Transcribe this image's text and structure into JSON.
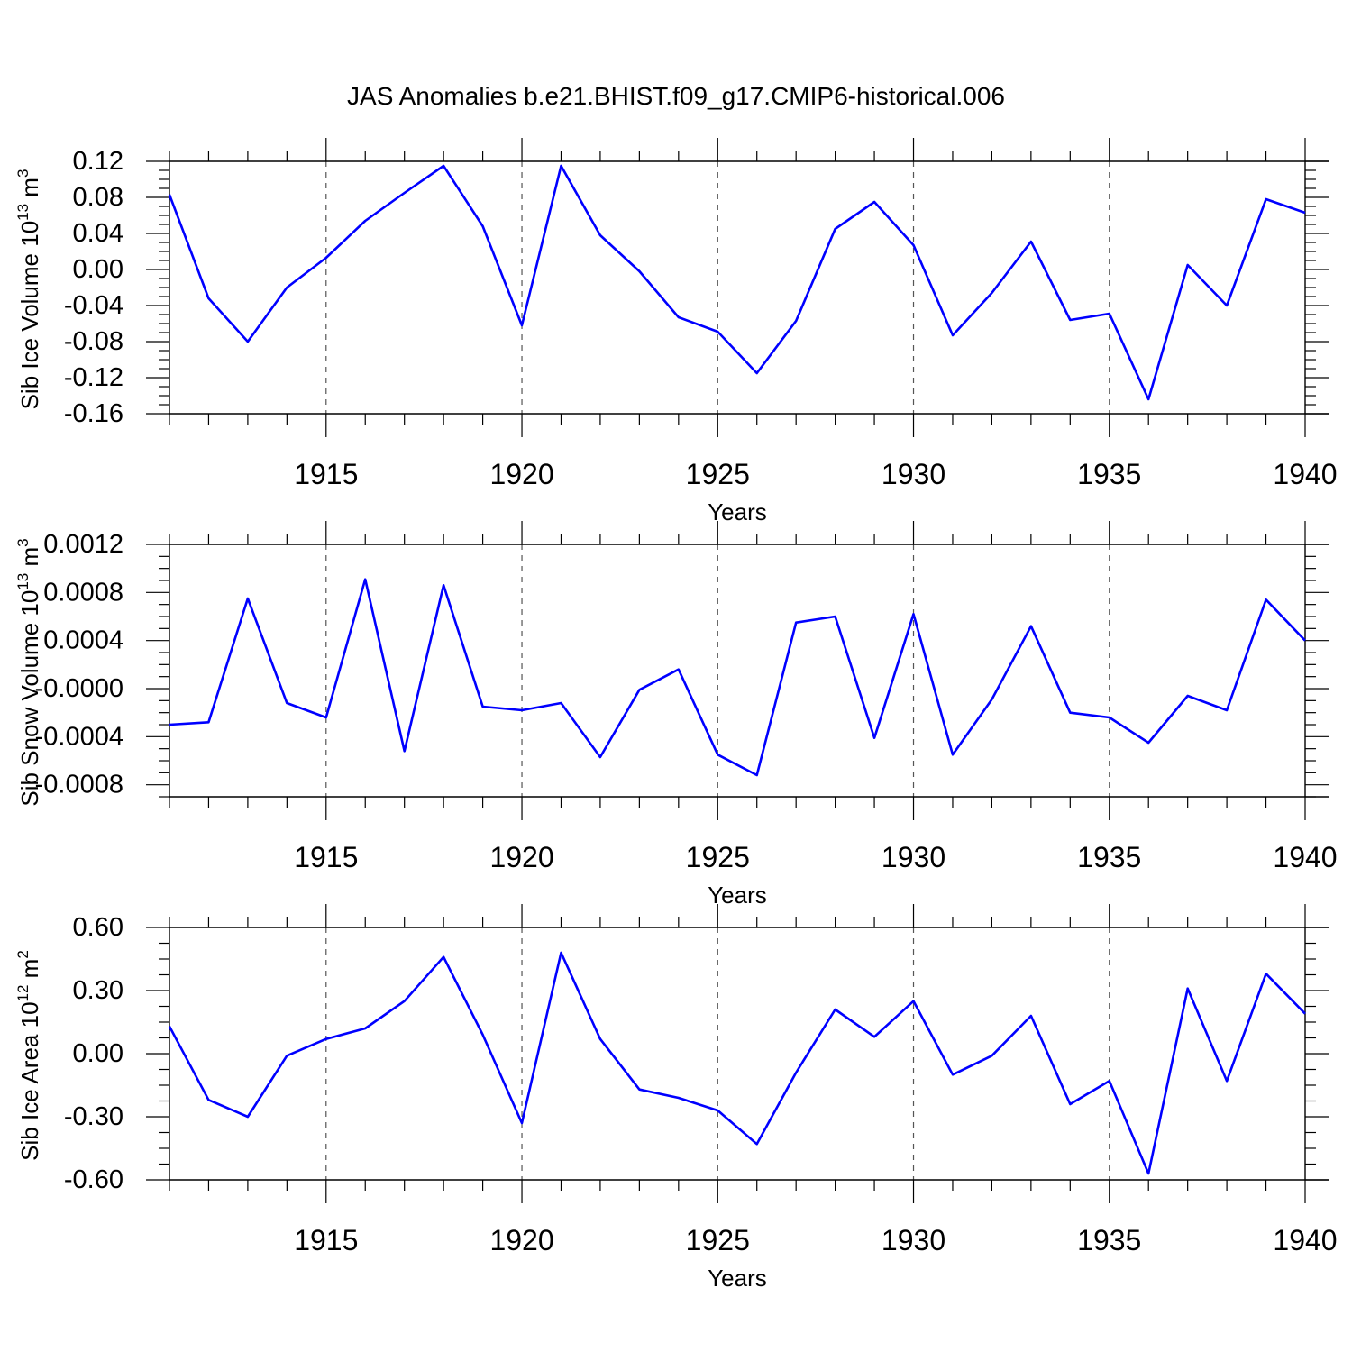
{
  "title": "JAS Anomalies b.e21.BHIST.f09_g17.CMIP6-historical.006",
  "chart_data": [
    {
      "type": "line",
      "ylabel_main": "Sib Ice Volume 10",
      "ylabel_exp": "13",
      "ylabel_unit": " m",
      "ylabel_unit_exp": "3",
      "xlabel": "Years",
      "xlim": [
        1911,
        1940
      ],
      "ylim": [
        -0.16,
        0.12
      ],
      "x_ticks": [
        1915,
        1920,
        1925,
        1930,
        1935,
        1940
      ],
      "x_tick_labels": [
        "1915",
        "1920",
        "1925",
        "1930",
        "1935",
        "1940"
      ],
      "y_ticks": [
        0.12,
        0.08,
        0.04,
        0.0,
        -0.04,
        -0.08,
        -0.12,
        -0.16
      ],
      "y_tick_labels": [
        "0.12",
        "0.08",
        "0.04",
        "0.00",
        "-0.04",
        "-0.08",
        "-0.12",
        "-0.16"
      ],
      "x": [
        1911,
        1912,
        1913,
        1914,
        1915,
        1916,
        1917,
        1918,
        1919,
        1920,
        1921,
        1922,
        1923,
        1924,
        1925,
        1926,
        1927,
        1928,
        1929,
        1930,
        1931,
        1932,
        1933,
        1934,
        1935,
        1936,
        1937,
        1938,
        1939,
        1940
      ],
      "values": [
        0.083,
        -0.032,
        -0.08,
        -0.02,
        0.013,
        0.054,
        0.085,
        0.115,
        0.048,
        -0.062,
        0.115,
        0.038,
        -0.002,
        -0.053,
        -0.069,
        -0.115,
        -0.057,
        0.045,
        0.075,
        0.027,
        -0.073,
        -0.026,
        0.031,
        -0.056,
        -0.049,
        -0.144,
        0.005,
        -0.04,
        0.078,
        0.063
      ],
      "color": "#0000ff"
    },
    {
      "type": "line",
      "ylabel_main": "Sib Snow Volume 10",
      "ylabel_exp": "13",
      "ylabel_unit": " m",
      "ylabel_unit_exp": "3",
      "xlabel": "Years",
      "xlim": [
        1911,
        1940
      ],
      "ylim": [
        -0.0009,
        0.0012
      ],
      "x_ticks": [
        1915,
        1920,
        1925,
        1930,
        1935,
        1940
      ],
      "x_tick_labels": [
        "1915",
        "1920",
        "1925",
        "1930",
        "1935",
        "1940"
      ],
      "y_ticks": [
        0.0012,
        0.0008,
        0.0004,
        0.0,
        -0.0004,
        -0.0008
      ],
      "y_tick_labels": [
        "0.0012",
        "0.0008",
        "0.0004",
        "-0.0000",
        "-0.0004",
        "-0.0008"
      ],
      "x": [
        1911,
        1912,
        1913,
        1914,
        1915,
        1916,
        1917,
        1918,
        1919,
        1920,
        1921,
        1922,
        1923,
        1924,
        1925,
        1926,
        1927,
        1928,
        1929,
        1930,
        1931,
        1932,
        1933,
        1934,
        1935,
        1936,
        1937,
        1938,
        1939,
        1940
      ],
      "values": [
        -0.0003,
        -0.00028,
        0.00075,
        -0.00012,
        -0.00024,
        0.00091,
        -0.00052,
        0.00086,
        -0.00015,
        -0.00018,
        -0.00012,
        -0.00057,
        -1e-05,
        0.00016,
        -0.00055,
        -0.00072,
        0.00055,
        0.0006,
        -0.00041,
        0.00062,
        -0.00055,
        -9e-05,
        0.00052,
        -0.0002,
        -0.00024,
        -0.00045,
        -6e-05,
        -0.00018,
        0.00074,
        0.0004
      ],
      "color": "#0000ff"
    },
    {
      "type": "line",
      "ylabel_main": "Sib Ice Area 10",
      "ylabel_exp": "12",
      "ylabel_unit": " m",
      "ylabel_unit_exp": "2",
      "xlabel": "Years",
      "xlim": [
        1911,
        1940
      ],
      "ylim": [
        -0.6,
        0.6
      ],
      "x_ticks": [
        1915,
        1920,
        1925,
        1930,
        1935,
        1940
      ],
      "x_tick_labels": [
        "1915",
        "1920",
        "1925",
        "1930",
        "1935",
        "1940"
      ],
      "y_ticks": [
        0.6,
        0.3,
        0.0,
        -0.3,
        -0.6
      ],
      "y_tick_labels": [
        "0.60",
        "0.30",
        "0.00",
        "-0.30",
        "-0.60"
      ],
      "x": [
        1911,
        1912,
        1913,
        1914,
        1915,
        1916,
        1917,
        1918,
        1919,
        1920,
        1921,
        1922,
        1923,
        1924,
        1925,
        1926,
        1927,
        1928,
        1929,
        1930,
        1931,
        1932,
        1933,
        1934,
        1935,
        1936,
        1937,
        1938,
        1939,
        1940
      ],
      "values": [
        0.13,
        -0.22,
        -0.3,
        -0.01,
        0.07,
        0.12,
        0.25,
        0.46,
        0.09,
        -0.33,
        0.48,
        0.07,
        -0.17,
        -0.21,
        -0.27,
        -0.43,
        -0.09,
        0.21,
        0.08,
        0.25,
        -0.1,
        -0.01,
        0.18,
        -0.24,
        -0.13,
        -0.57,
        0.31,
        -0.13,
        0.38,
        0.19
      ],
      "color": "#0000ff"
    }
  ]
}
